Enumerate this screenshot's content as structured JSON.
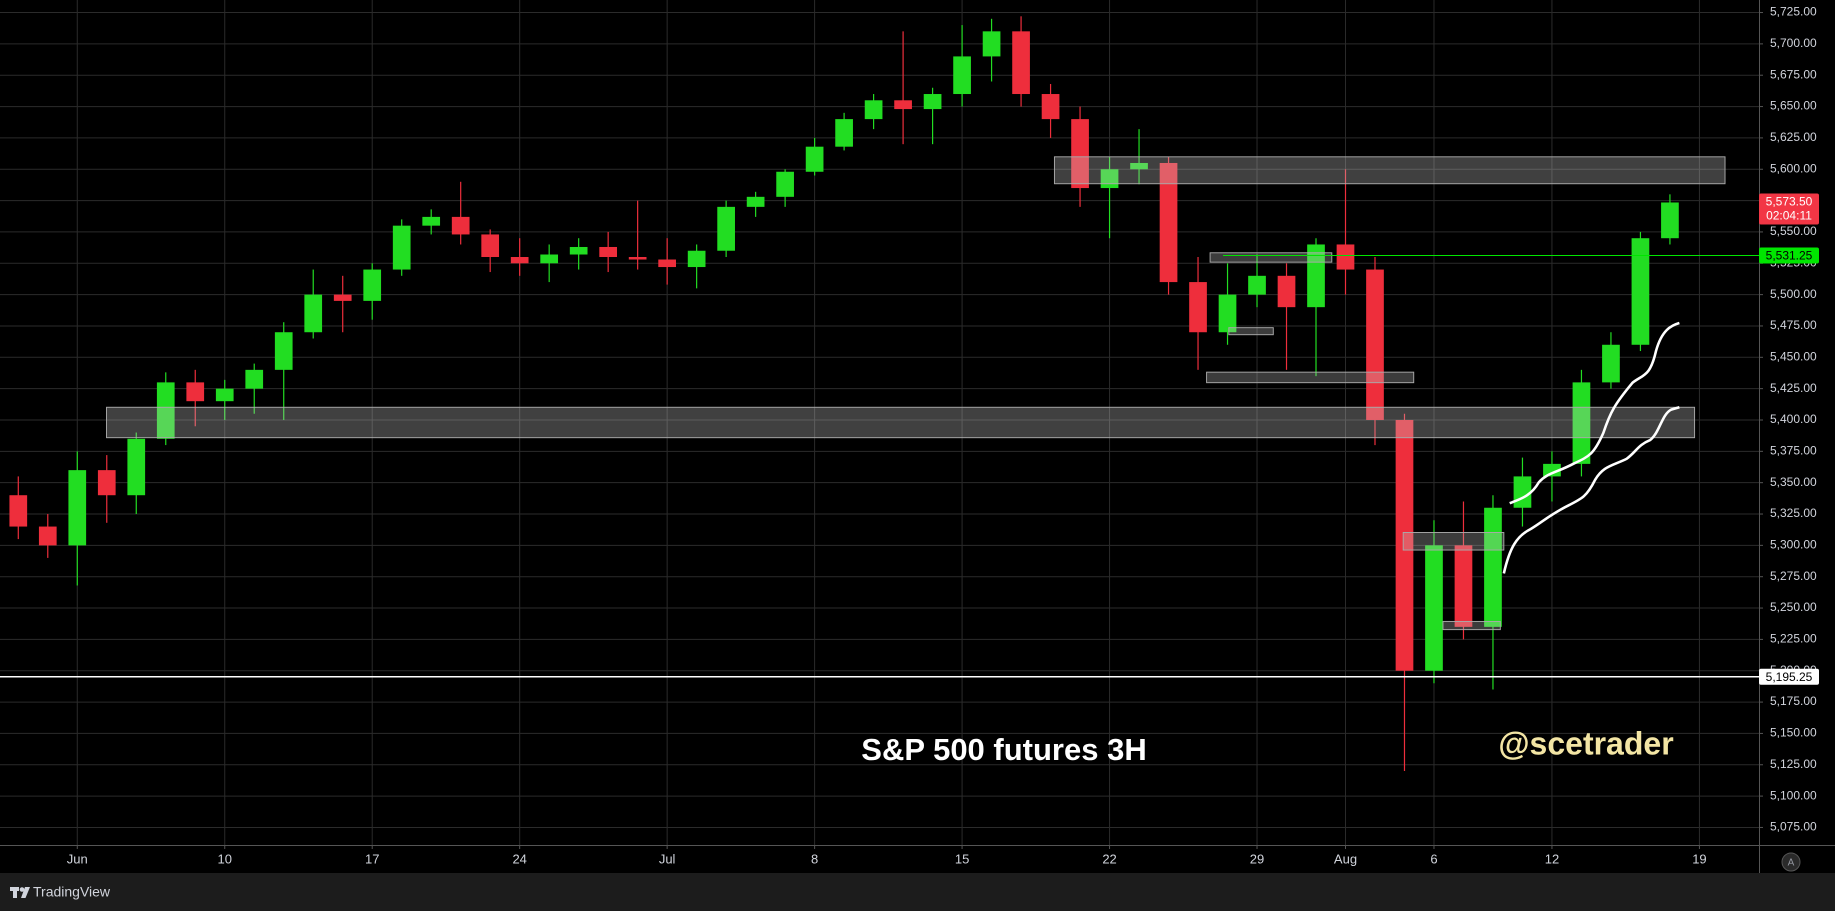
{
  "chart_data": {
    "type": "candlestick",
    "title": "S&P 500 futures 3H",
    "watermark": "@scetrader",
    "up_color": "#22dd22",
    "down_color": "#ee2e3c",
    "grid": true,
    "open": [
      5340,
      5315,
      5300,
      5360,
      5340,
      5385,
      5430,
      5415,
      5425,
      5440,
      5470,
      5500,
      5495,
      5520,
      5555,
      5562,
      5548,
      5530,
      5525,
      5532,
      5538,
      5530,
      5528,
      5522,
      5535,
      5570,
      5578,
      5598,
      5618,
      5640,
      5655,
      5648,
      5660,
      5690,
      5710,
      5660,
      5640,
      5585,
      5600,
      5605,
      5510,
      5470,
      5500,
      5515,
      5490,
      5540,
      5520,
      5400,
      5200,
      5300,
      5235,
      5330,
      5355,
      5365,
      5430,
      5460,
      5545
    ],
    "high": [
      5355,
      5325,
      5375,
      5372,
      5390,
      5438,
      5440,
      5432,
      5445,
      5478,
      5520,
      5515,
      5525,
      5560,
      5568,
      5590,
      5552,
      5545,
      5540,
      5545,
      5550,
      5575,
      5545,
      5540,
      5575,
      5582,
      5600,
      5625,
      5645,
      5660,
      5710,
      5665,
      5715,
      5720,
      5722,
      5668,
      5650,
      5610,
      5632,
      5610,
      5530,
      5525,
      5532,
      5525,
      5545,
      5600,
      5530,
      5405,
      5320,
      5335,
      5340,
      5370,
      5375,
      5440,
      5470,
      5550,
      5580
    ],
    "low": [
      5305,
      5290,
      5268,
      5318,
      5325,
      5380,
      5395,
      5400,
      5405,
      5400,
      5465,
      5470,
      5480,
      5515,
      5548,
      5540,
      5518,
      5515,
      5510,
      5520,
      5518,
      5520,
      5508,
      5505,
      5530,
      5562,
      5570,
      5595,
      5615,
      5632,
      5620,
      5620,
      5650,
      5670,
      5650,
      5625,
      5570,
      5545,
      5588,
      5500,
      5440,
      5460,
      5490,
      5440,
      5435,
      5500,
      5380,
      5120,
      5190,
      5225,
      5185,
      5315,
      5335,
      5355,
      5425,
      5455,
      5540
    ],
    "close": [
      5315,
      5300,
      5360,
      5340,
      5385,
      5430,
      5415,
      5425,
      5440,
      5470,
      5500,
      5495,
      5520,
      5555,
      5562,
      5548,
      5530,
      5525,
      5532,
      5538,
      5530,
      5528,
      5522,
      5535,
      5570,
      5578,
      5598,
      5618,
      5640,
      5655,
      5648,
      5660,
      5690,
      5710,
      5660,
      5640,
      5585,
      5600,
      5605,
      5510,
      5470,
      5500,
      5515,
      5490,
      5540,
      5520,
      5400,
      5200,
      5300,
      5235,
      5330,
      5355,
      5365,
      5430,
      5460,
      5545,
      5573.5
    ],
    "xlim": [
      -0.62,
      59.02
    ],
    "xticks": [
      {
        "value": 2,
        "label": "Jun"
      },
      {
        "value": 7,
        "label": "10"
      },
      {
        "value": 12,
        "label": "17"
      },
      {
        "value": 17,
        "label": "24"
      },
      {
        "value": 22,
        "label": "Jul"
      },
      {
        "value": 27,
        "label": "8"
      },
      {
        "value": 32,
        "label": "15"
      },
      {
        "value": 37,
        "label": "22"
      },
      {
        "value": 42,
        "label": "29"
      },
      {
        "value": 45,
        "label": "Aug"
      },
      {
        "value": 48,
        "label": "6"
      },
      {
        "value": 52,
        "label": "12"
      },
      {
        "value": 57,
        "label": "19"
      }
    ],
    "ylim": [
      5061,
      5735
    ],
    "yticks": [
      {
        "value": 5075,
        "label": "5,075.00"
      },
      {
        "value": 5100,
        "label": "5,100.00"
      },
      {
        "value": 5125,
        "label": "5,125.00"
      },
      {
        "value": 5150,
        "label": "5,150.00"
      },
      {
        "value": 5175,
        "label": "5,175.00"
      },
      {
        "value": 5200,
        "label": "5,200.00"
      },
      {
        "value": 5225,
        "label": "5,225.00"
      },
      {
        "value": 5250,
        "label": "5,250.00"
      },
      {
        "value": 5275,
        "label": "5,275.00"
      },
      {
        "value": 5300,
        "label": "5,300.00"
      },
      {
        "value": 5325,
        "label": "5,325.00"
      },
      {
        "value": 5350,
        "label": "5,350.00"
      },
      {
        "value": 5375,
        "label": "5,375.00"
      },
      {
        "value": 5400,
        "label": "5,400.00"
      },
      {
        "value": 5425,
        "label": "5,425.00"
      },
      {
        "value": 5450,
        "label": "5,450.00"
      },
      {
        "value": 5475,
        "label": "5,475.00"
      },
      {
        "value": 5500,
        "label": "5,500.00"
      },
      {
        "value": 5525,
        "label": "5,525.00"
      },
      {
        "value": 5550,
        "label": "5,550.00"
      },
      {
        "value": 5575,
        "label": "5,575.00"
      },
      {
        "value": 5600,
        "label": "5,600.00"
      },
      {
        "value": 5625,
        "label": "5,625.00"
      },
      {
        "value": 5650,
        "label": "5,650.00"
      },
      {
        "value": 5675,
        "label": "5,675.00"
      },
      {
        "value": 5700,
        "label": "5,700.00"
      },
      {
        "value": 5725,
        "label": "5,725.00"
      }
    ],
    "hlines": [
      {
        "value": 5531.25,
        "label": "5,531.25",
        "color": "#00e600"
      },
      {
        "value": 5195.25,
        "label": "5,195.25",
        "color": "#ffffff"
      }
    ],
    "last_price": {
      "value": 5573.5,
      "label": "5,573.50",
      "countdown": "02:04:11",
      "color": "#f23645"
    }
  },
  "footer": {
    "brand": "TradingView",
    "auto_button": "A"
  }
}
